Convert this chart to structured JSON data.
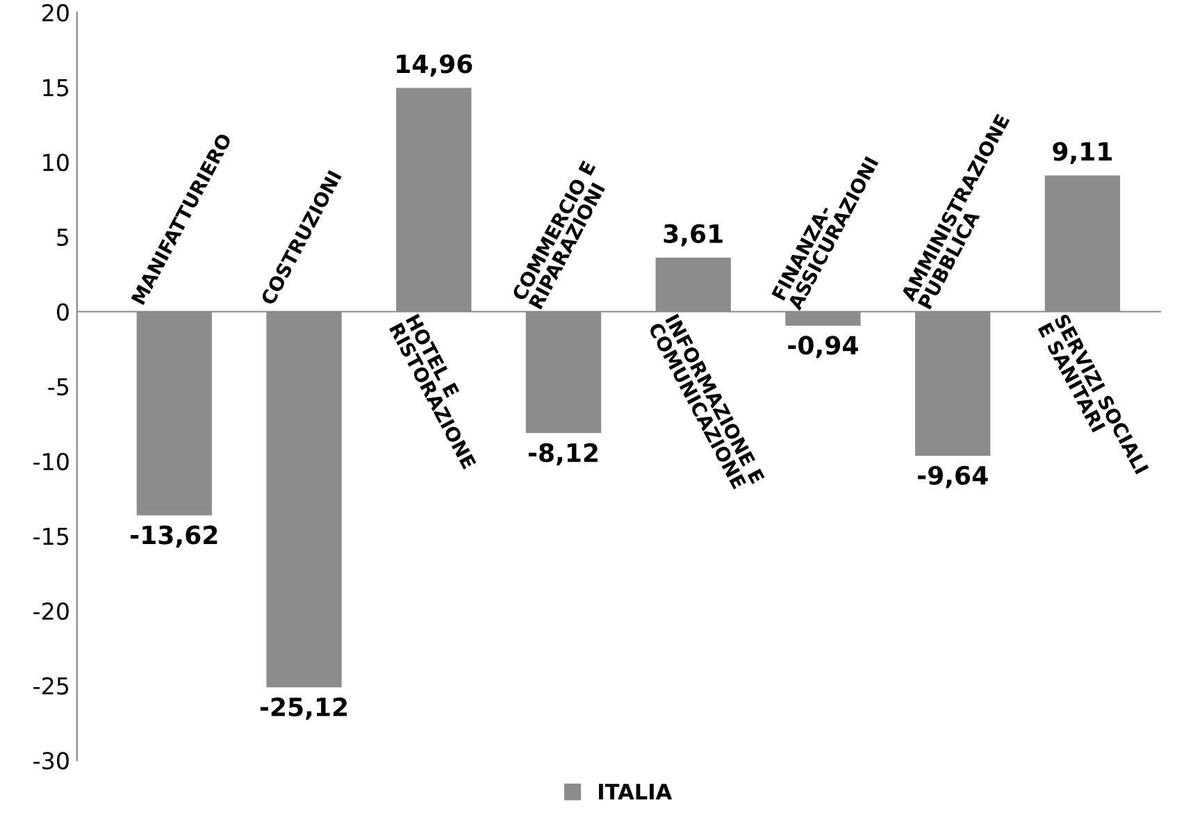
{
  "chart_data": {
    "type": "bar",
    "categories": [
      "MANIFATTURIERO",
      "COSTRUZIONI",
      "HOTEL E\nRISTORAZIONE",
      "COMMERCIO E\nRIPARAZIONI",
      "INFORMAZIONE E\nCOMUNICAZIONE",
      "FINANZA-\nASSICURAZIONI",
      "AMMINISTRAZIONE\nPUBBLICA",
      "SERVIZI SOCIALI\nE SANITARI"
    ],
    "series": [
      {
        "name": "ITALIA",
        "color": "#8c8c8c",
        "values": [
          -13.62,
          -25.12,
          14.96,
          -8.12,
          3.61,
          -0.94,
          -9.64,
          9.11
        ],
        "value_labels": [
          "-13,62",
          "-25,12",
          "14,96",
          "-8,12",
          "3,61",
          "-0,94",
          "-9,64",
          "9,11"
        ]
      }
    ],
    "ylim": [
      -30,
      20
    ],
    "yticks": [
      -30,
      -25,
      -20,
      -15,
      -10,
      -5,
      0,
      5,
      10,
      15,
      20
    ],
    "grid": false,
    "legend": "bottom"
  }
}
